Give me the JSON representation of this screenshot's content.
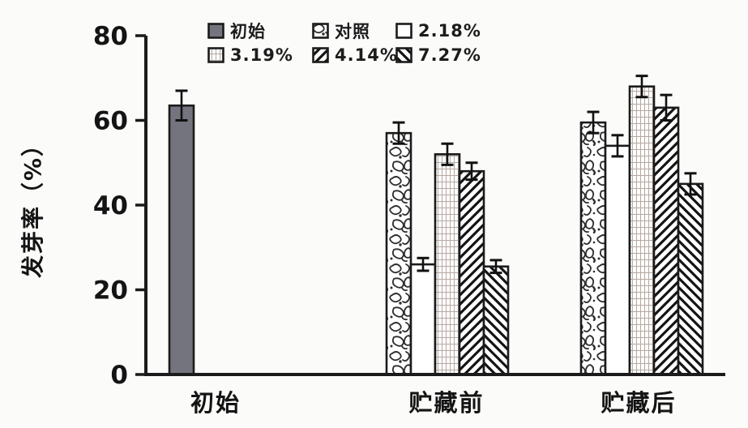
{
  "chart_data": {
    "type": "bar",
    "title": "",
    "ylabel": "发芽率（%）",
    "xlabel": "",
    "ylim": [
      0,
      80
    ],
    "yticks": [
      0,
      20,
      40,
      60,
      80
    ],
    "grid": false,
    "legend_position": "top",
    "categories": [
      "初始",
      "贮藏前",
      "贮藏后"
    ],
    "series": [
      {
        "name": "初始",
        "pattern": "solid-gray",
        "values": [
          63.5,
          null,
          null
        ],
        "errors": [
          3.5,
          null,
          null
        ]
      },
      {
        "name": "对照",
        "pattern": "marble",
        "values": [
          null,
          57,
          59.5
        ],
        "errors": [
          null,
          2.5,
          2.5
        ]
      },
      {
        "name": "2.18%",
        "pattern": "plain",
        "values": [
          null,
          26,
          54
        ],
        "errors": [
          null,
          1.5,
          2.5
        ]
      },
      {
        "name": "3.19%",
        "pattern": "grid",
        "values": [
          null,
          52,
          68
        ],
        "errors": [
          null,
          2.5,
          2.5
        ]
      },
      {
        "name": "4.14%",
        "pattern": "diag-up",
        "values": [
          null,
          48,
          63
        ],
        "errors": [
          null,
          2.0,
          3.0
        ]
      },
      {
        "name": "7.27%",
        "pattern": "diag-down",
        "values": [
          null,
          25.5,
          45
        ],
        "errors": [
          null,
          1.5,
          2.5
        ]
      }
    ]
  },
  "colors": {
    "background": "#fbfbfa",
    "axis": "#1b1b1b",
    "bar_gray": "#74747e",
    "hatch_black": "#141414",
    "grid_pattern_line": "#b4a8a1",
    "marble_line": "#2e2e2e",
    "text": "#141414"
  }
}
